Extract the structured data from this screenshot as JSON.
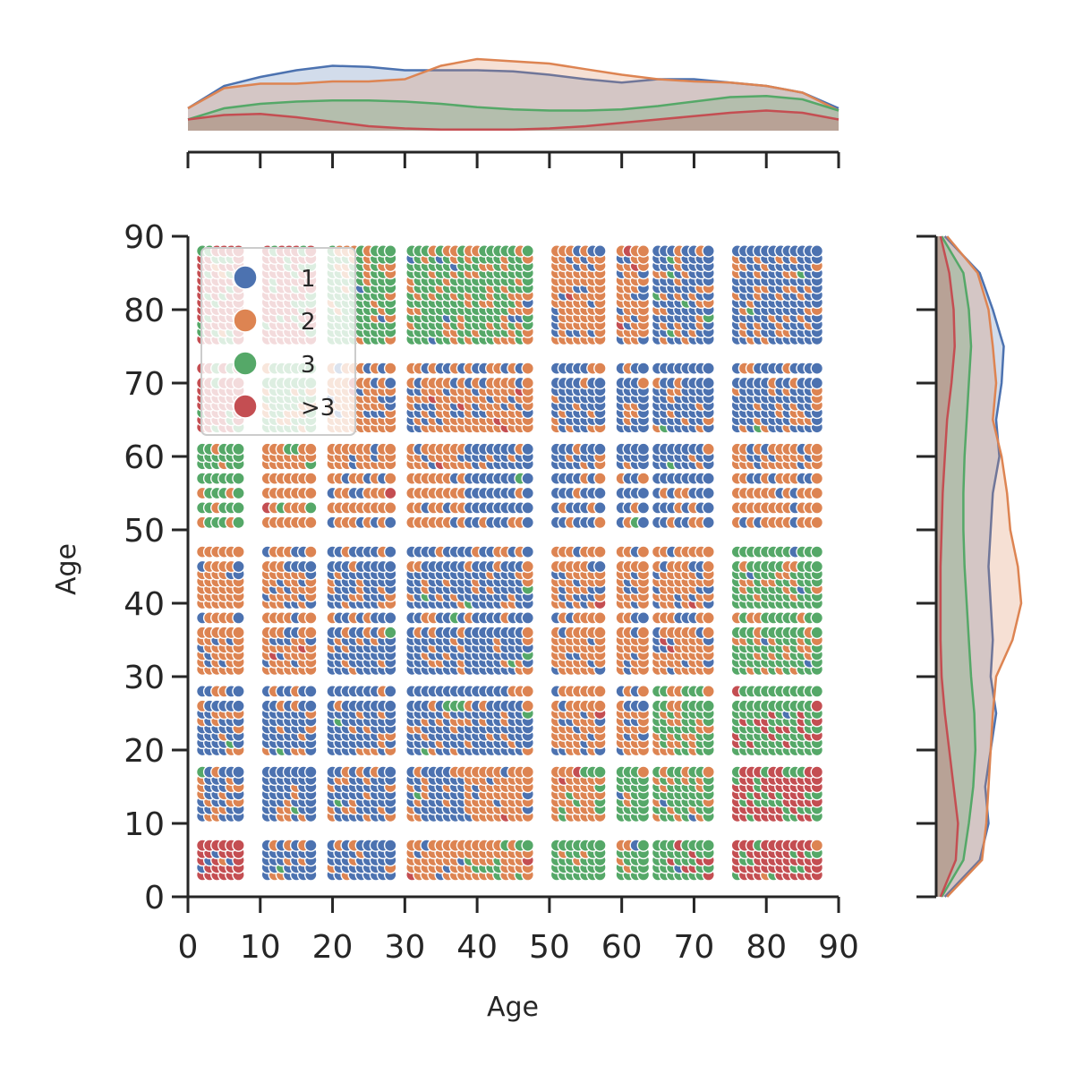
{
  "chart_data": {
    "type": "scatter",
    "title": "",
    "xlabel": "Age",
    "ylabel": "Age",
    "xlim": [
      0,
      90
    ],
    "ylim": [
      0,
      90
    ],
    "xticks": [
      "0",
      "10",
      "20",
      "30",
      "40",
      "50",
      "60",
      "70",
      "80",
      "90"
    ],
    "yticks": [
      "0",
      "10",
      "20",
      "30",
      "40",
      "50",
      "60",
      "70",
      "80",
      "90"
    ],
    "grid": false,
    "legend_placement": "top-left",
    "series": [
      {
        "name": "1",
        "color": "#4c72b0"
      },
      {
        "name": "2",
        "color": "#dd8452"
      },
      {
        "name": "3",
        "color": "#55a868"
      },
      {
        "name": ">3",
        "color": "#c44e52"
      }
    ],
    "grid_x_groups": [
      [
        2,
        3,
        4,
        5,
        6,
        7
      ],
      [
        11,
        12,
        13,
        14,
        15,
        16,
        17
      ],
      [
        20,
        21,
        22,
        23,
        24,
        25,
        26,
        27,
        28
      ],
      [
        31,
        32,
        33,
        34,
        35,
        36,
        37,
        38
      ],
      [
        39,
        40,
        41,
        42,
        43,
        44,
        45,
        46,
        47
      ],
      [
        51,
        52,
        53,
        54,
        55,
        56,
        57
      ],
      [
        60,
        61,
        62,
        63
      ],
      [
        65,
        66,
        67,
        68,
        69,
        70,
        71,
        72
      ],
      [
        76,
        77,
        78,
        79,
        80,
        81,
        82,
        83,
        84,
        85,
        86,
        87
      ]
    ],
    "grid_y_groups": [
      [
        3,
        4,
        5,
        6,
        7
      ],
      [
        11,
        12,
        13,
        14,
        15,
        16,
        17
      ],
      [
        20,
        21,
        22,
        23,
        24,
        25,
        26,
        28
      ],
      [
        31,
        32,
        33,
        34,
        35,
        36,
        38,
        40,
        41,
        42,
        43,
        44,
        45,
        47
      ],
      [
        51,
        53,
        55,
        57,
        59,
        60,
        61
      ],
      [
        64,
        65,
        66,
        67,
        68,
        69,
        70,
        72
      ],
      [
        76,
        77,
        78,
        79,
        80,
        81,
        82,
        83,
        84,
        85,
        86,
        87,
        88
      ]
    ],
    "cell_dominant": [
      [
        3,
        0,
        0,
        1,
        1,
        2,
        2,
        2,
        3
      ],
      [
        0,
        0,
        0,
        0,
        1,
        1,
        2,
        2,
        3
      ],
      [
        0,
        0,
        0,
        0,
        0,
        1,
        1,
        2,
        2
      ],
      [
        1,
        1,
        0,
        0,
        0,
        1,
        1,
        1,
        2
      ],
      [
        2,
        1,
        1,
        1,
        0,
        0,
        0,
        0,
        1
      ],
      [
        3,
        2,
        1,
        1,
        1,
        0,
        0,
        0,
        0
      ],
      [
        3,
        3,
        2,
        2,
        2,
        1,
        1,
        0,
        0
      ]
    ],
    "cell_secondary": [
      [
        0,
        1,
        1,
        0,
        2,
        1,
        1,
        3,
        2
      ],
      [
        1,
        1,
        1,
        1,
        0,
        2,
        1,
        1,
        2
      ],
      [
        1,
        1,
        1,
        1,
        1,
        0,
        0,
        1,
        3
      ],
      [
        0,
        0,
        1,
        1,
        1,
        0,
        0,
        0,
        1
      ],
      [
        1,
        2,
        0,
        0,
        1,
        1,
        1,
        1,
        0
      ],
      [
        2,
        1,
        0,
        0,
        0,
        1,
        1,
        1,
        1
      ],
      [
        2,
        2,
        1,
        1,
        1,
        0,
        0,
        1,
        1
      ]
    ],
    "marginal_x": [
      {
        "series": "1",
        "x": [
          0,
          5,
          10,
          15,
          20,
          25,
          30,
          35,
          40,
          45,
          50,
          55,
          60,
          65,
          70,
          75,
          80,
          85,
          90
        ],
        "density": [
          0.02,
          0.04,
          0.048,
          0.054,
          0.058,
          0.057,
          0.054,
          0.054,
          0.054,
          0.053,
          0.05,
          0.046,
          0.043,
          0.046,
          0.046,
          0.043,
          0.04,
          0.034,
          0.02
        ]
      },
      {
        "series": "2",
        "x": [
          0,
          5,
          10,
          15,
          20,
          25,
          30,
          35,
          40,
          45,
          50,
          55,
          60,
          65,
          70,
          75,
          80,
          85,
          90
        ],
        "density": [
          0.02,
          0.038,
          0.042,
          0.042,
          0.044,
          0.044,
          0.046,
          0.058,
          0.064,
          0.062,
          0.06,
          0.055,
          0.05,
          0.046,
          0.044,
          0.043,
          0.04,
          0.034,
          0.018
        ]
      },
      {
        "series": "3",
        "x": [
          0,
          5,
          10,
          15,
          20,
          25,
          30,
          35,
          40,
          45,
          50,
          55,
          60,
          65,
          70,
          75,
          80,
          85,
          90
        ],
        "density": [
          0.01,
          0.02,
          0.024,
          0.026,
          0.027,
          0.027,
          0.026,
          0.024,
          0.021,
          0.019,
          0.018,
          0.018,
          0.019,
          0.022,
          0.026,
          0.03,
          0.031,
          0.028,
          0.018
        ]
      },
      {
        "series": ">3",
        "x": [
          0,
          5,
          10,
          15,
          20,
          25,
          30,
          35,
          40,
          45,
          50,
          55,
          60,
          65,
          70,
          75,
          80,
          85,
          90
        ],
        "density": [
          0.01,
          0.014,
          0.015,
          0.012,
          0.008,
          0.004,
          0.002,
          0.001,
          0.001,
          0.001,
          0.002,
          0.004,
          0.007,
          0.01,
          0.013,
          0.016,
          0.018,
          0.016,
          0.01
        ]
      }
    ],
    "marginal_y": [
      {
        "series": "1",
        "y": [
          0,
          5,
          10,
          15,
          20,
          25,
          30,
          35,
          40,
          45,
          50,
          55,
          60,
          65,
          70,
          75,
          80,
          85,
          90
        ],
        "density": [
          0.008,
          0.04,
          0.048,
          0.045,
          0.05,
          0.055,
          0.05,
          0.052,
          0.05,
          0.048,
          0.05,
          0.052,
          0.058,
          0.055,
          0.06,
          0.062,
          0.052,
          0.04,
          0.008
        ]
      },
      {
        "series": "2",
        "y": [
          0,
          5,
          10,
          15,
          20,
          25,
          30,
          35,
          40,
          45,
          50,
          55,
          60,
          65,
          70,
          75,
          80,
          85,
          90
        ],
        "density": [
          0.01,
          0.042,
          0.046,
          0.048,
          0.05,
          0.052,
          0.055,
          0.07,
          0.078,
          0.075,
          0.068,
          0.065,
          0.06,
          0.052,
          0.055,
          0.052,
          0.048,
          0.038,
          0.01
        ]
      },
      {
        "series": "3",
        "y": [
          0,
          5,
          10,
          15,
          20,
          25,
          30,
          35,
          40,
          45,
          50,
          55,
          60,
          65,
          70,
          75,
          80,
          85,
          90
        ],
        "density": [
          0.005,
          0.025,
          0.03,
          0.034,
          0.036,
          0.035,
          0.032,
          0.03,
          0.028,
          0.026,
          0.025,
          0.025,
          0.026,
          0.028,
          0.03,
          0.032,
          0.03,
          0.025,
          0.005
        ]
      },
      {
        "series": ">3",
        "y": [
          0,
          5,
          10,
          15,
          20,
          25,
          30,
          35,
          40,
          45,
          50,
          55,
          60,
          65,
          70,
          75,
          80,
          85,
          90
        ],
        "density": [
          0.004,
          0.018,
          0.02,
          0.016,
          0.012,
          0.008,
          0.005,
          0.004,
          0.004,
          0.004,
          0.005,
          0.006,
          0.008,
          0.01,
          0.014,
          0.017,
          0.016,
          0.012,
          0.004
        ]
      }
    ]
  }
}
